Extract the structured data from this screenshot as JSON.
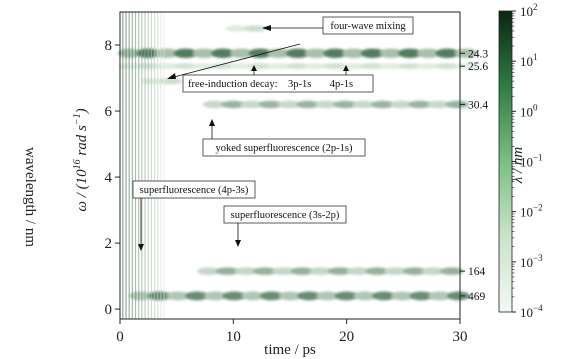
{
  "chart_data": {
    "type": "heatmap",
    "xlabel": "time / ps",
    "ylabel_main": "ω / (10",
    "ylabel_exp": "16",
    "ylabel_tail": " rad s",
    "ylabel_tail_exp": "−1",
    "ylabel_close": ")",
    "ylabel_right": "λ / nm",
    "outer_ylabel": "wavelength / nm",
    "xlim": [
      0,
      30
    ],
    "ylim": [
      -0.3,
      9.0
    ],
    "xticks": [
      "0",
      "10",
      "20",
      "30"
    ],
    "yticks": [
      "0",
      "2",
      "4",
      "6",
      "8"
    ],
    "wavelength_labels": [
      {
        "label": "24.3",
        "omega": 7.75
      },
      {
        "label": "25.6",
        "omega": 7.36
      },
      {
        "label": "30.4",
        "omega": 6.2
      },
      {
        "label": "164",
        "omega": 1.15
      },
      {
        "label": "469",
        "omega": 0.4
      }
    ],
    "bands": [
      {
        "omega": 7.75,
        "t_start": 0,
        "t_end": 30,
        "intensity": 0.7
      },
      {
        "omega": 7.36,
        "t_start": 0,
        "t_end": 30,
        "intensity": 0.12
      },
      {
        "omega": 6.2,
        "t_start": 7.5,
        "t_end": 30,
        "intensity": 0.38
      },
      {
        "omega": 1.15,
        "t_start": 7.0,
        "t_end": 30,
        "intensity": 0.4
      },
      {
        "omega": 0.4,
        "t_start": 1.0,
        "t_end": 30,
        "intensity": 0.6
      },
      {
        "omega": 8.5,
        "t_start": 9.5,
        "t_end": 12.5,
        "intensity": 0.15
      },
      {
        "omega": 6.9,
        "t_start": 2.0,
        "t_end": 5.0,
        "intensity": 0.15
      }
    ],
    "annotations": [
      {
        "text": "four-wave mixing"
      },
      {
        "text": "free-induction decay:    3p-1s       4p-1s"
      },
      {
        "text": "yoked superfluorescence (2p-1s)"
      },
      {
        "text": "superfluorescence (4p-3s)"
      },
      {
        "text": "superfluorescence (3s-2p)"
      }
    ],
    "colorbar": {
      "scale": "log",
      "range": [
        0.0001,
        100
      ],
      "ticks": [
        {
          "base": "10",
          "exp": "2"
        },
        {
          "base": "10",
          "exp": "1"
        },
        {
          "base": "10",
          "exp": "0"
        },
        {
          "base": "10",
          "exp": "−1"
        },
        {
          "base": "10",
          "exp": "−2"
        },
        {
          "base": "10",
          "exp": "−3"
        },
        {
          "base": "10",
          "exp": "−4"
        }
      ],
      "color_low": "#f4f9f4",
      "color_high": "#0a2612"
    }
  }
}
